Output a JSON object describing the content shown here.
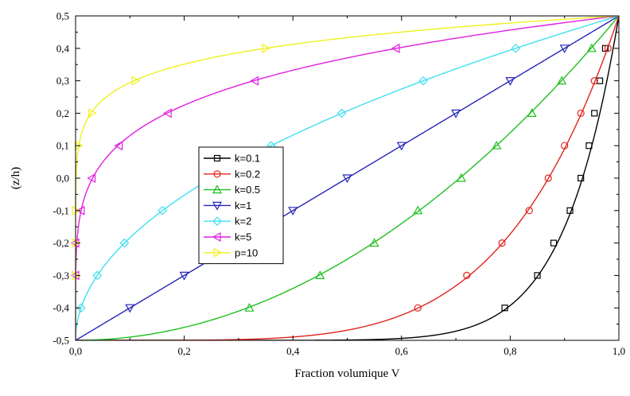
{
  "chart_data": {
    "type": "line",
    "title": "",
    "xlabel": "Fraction volumique V",
    "ylabel": "(z/h)",
    "xlim": [
      0.0,
      1.0
    ],
    "ylim": [
      -0.5,
      0.5
    ],
    "x_ticks": [
      "0,0",
      "0,2",
      "0,4",
      "0,6",
      "0,8",
      "1,0"
    ],
    "x_tick_values": [
      0.0,
      0.2,
      0.4,
      0.6,
      0.8,
      1.0
    ],
    "y_ticks": [
      "-0,5",
      "-0,4",
      "-0,3",
      "-0,2",
      "-0,1",
      "0,0",
      "0,1",
      "0,2",
      "0,3",
      "0,4",
      "0,5"
    ],
    "y_tick_values": [
      -0.5,
      -0.4,
      -0.3,
      -0.2,
      -0.1,
      0.0,
      0.1,
      0.2,
      0.3,
      0.4,
      0.5
    ],
    "grid": false,
    "legend_position": "center-left",
    "series": [
      {
        "name": "k=0.1",
        "color": "#000000",
        "marker": "square",
        "exponent": 0.1,
        "markers": [
          [
            0.79,
            -0.4
          ],
          [
            0.85,
            -0.3
          ],
          [
            0.88,
            -0.2
          ],
          [
            0.91,
            -0.1
          ],
          [
            0.93,
            0.0
          ],
          [
            0.945,
            0.1
          ],
          [
            0.955,
            0.2
          ],
          [
            0.965,
            0.3
          ],
          [
            0.975,
            0.4
          ]
        ]
      },
      {
        "name": "k=0.2",
        "color": "#e0241c",
        "marker": "circle",
        "exponent": 0.2,
        "markers": [
          [
            0.63,
            -0.4
          ],
          [
            0.72,
            -0.3
          ],
          [
            0.785,
            -0.2
          ],
          [
            0.835,
            -0.1
          ],
          [
            0.87,
            0.0
          ],
          [
            0.9,
            0.1
          ],
          [
            0.93,
            0.2
          ],
          [
            0.955,
            0.3
          ],
          [
            0.98,
            0.4
          ]
        ]
      },
      {
        "name": "k=0.5",
        "color": "#1fbf1f",
        "marker": "triangle-up",
        "exponent": 0.5,
        "markers": [
          [
            0.32,
            -0.4
          ],
          [
            0.45,
            -0.3
          ],
          [
            0.55,
            -0.2
          ],
          [
            0.63,
            -0.1
          ],
          [
            0.71,
            0.0
          ],
          [
            0.775,
            0.1
          ],
          [
            0.84,
            0.2
          ],
          [
            0.895,
            0.3
          ],
          [
            0.95,
            0.4
          ]
        ]
      },
      {
        "name": "k=1",
        "color": "#2626b8",
        "marker": "triangle-down",
        "exponent": 1,
        "markers": [
          [
            0.1,
            -0.4
          ],
          [
            0.2,
            -0.3
          ],
          [
            0.3,
            -0.2
          ],
          [
            0.4,
            -0.1
          ],
          [
            0.5,
            0.0
          ],
          [
            0.6,
            0.1
          ],
          [
            0.7,
            0.2
          ],
          [
            0.8,
            0.3
          ],
          [
            0.9,
            0.4
          ]
        ]
      },
      {
        "name": "k=2",
        "color": "#3fe0f0",
        "marker": "diamond",
        "exponent": 2,
        "markers": [
          [
            0.01,
            -0.4
          ],
          [
            0.04,
            -0.3
          ],
          [
            0.09,
            -0.2
          ],
          [
            0.16,
            -0.1
          ],
          [
            0.25,
            0.0
          ],
          [
            0.36,
            0.1
          ],
          [
            0.49,
            0.2
          ],
          [
            0.64,
            0.3
          ],
          [
            0.81,
            0.4
          ]
        ]
      },
      {
        "name": "k=5",
        "color": "#e020e0",
        "marker": "triangle-left",
        "exponent": 5,
        "markers": [
          [
            0.0,
            -0.3
          ],
          [
            0.0,
            -0.2
          ],
          [
            0.01,
            -0.1
          ],
          [
            0.03,
            0.0
          ],
          [
            0.08,
            0.1
          ],
          [
            0.17,
            0.2
          ],
          [
            0.33,
            0.3
          ],
          [
            0.59,
            0.4
          ]
        ]
      },
      {
        "name": "p=10",
        "color": "#f0f020",
        "marker": "triangle-right",
        "exponent": 10,
        "markers": [
          [
            0.0,
            -0.3
          ],
          [
            0.0,
            -0.2
          ],
          [
            0.0,
            -0.1
          ],
          [
            0.005,
            0.1
          ],
          [
            0.03,
            0.2
          ],
          [
            0.11,
            0.3
          ],
          [
            0.35,
            0.4
          ]
        ]
      }
    ]
  }
}
